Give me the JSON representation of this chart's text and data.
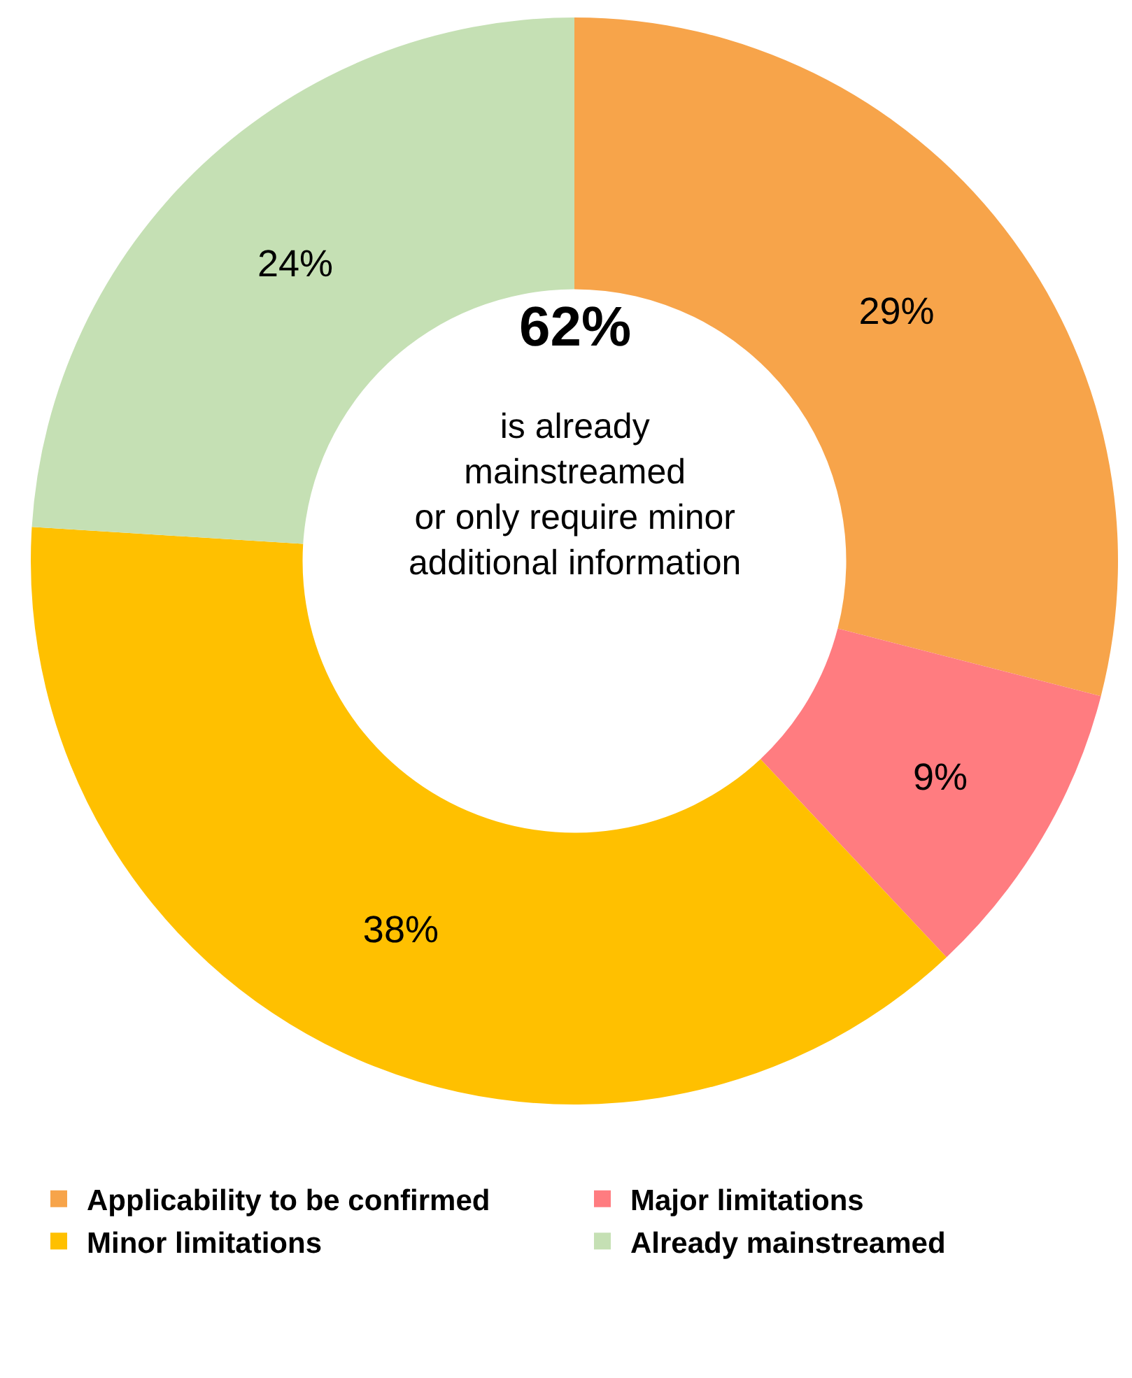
{
  "chart_data": {
    "type": "donut",
    "categories": [
      "Applicability to be confirmed",
      "Major limitations",
      "Minor limitations",
      "Already mainstreamed"
    ],
    "values": [
      29,
      9,
      38,
      24
    ],
    "colors": [
      "#f7a44a",
      "#ff7c80",
      "#ffc000",
      "#c5e0b4"
    ],
    "value_labels": [
      "29%",
      "9%",
      "38%",
      "24%"
    ],
    "annotations": [
      "62%",
      "is already\nmainstreamed\nor only require minor\nadditional information"
    ],
    "legend": "bottom"
  }
}
